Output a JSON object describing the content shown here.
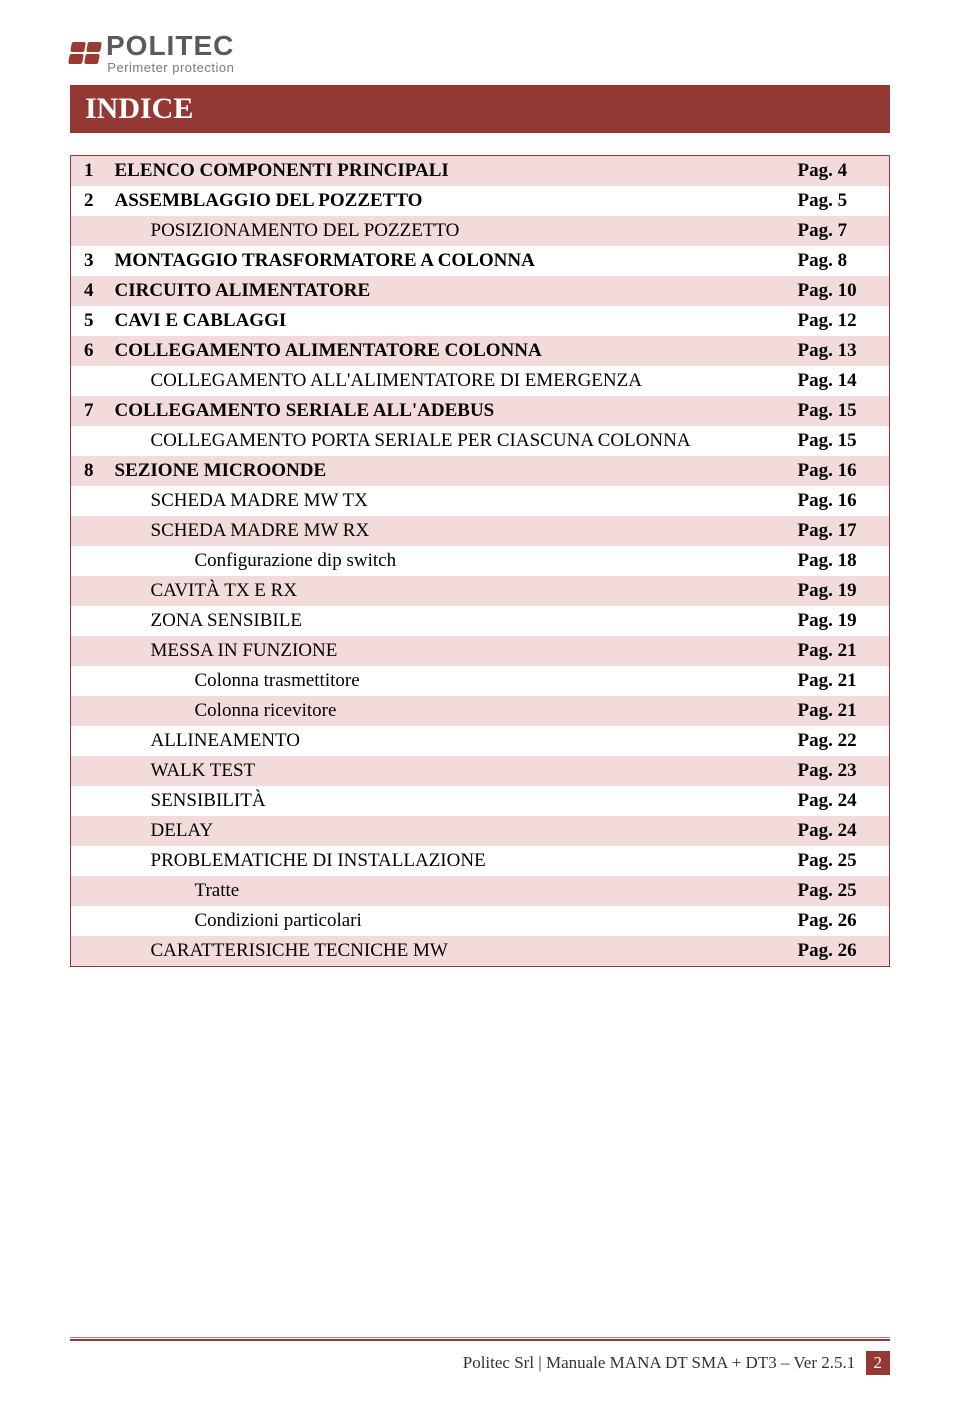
{
  "logo": {
    "brand": "POLITEC",
    "tagline": "Perimeter protection"
  },
  "title": "INDICE",
  "colors": {
    "brand": "#943833",
    "row_alt": "#f2dbda",
    "row_plain": "#ffffff",
    "text": "#000000"
  },
  "toc": [
    {
      "num": "1",
      "label": "ELENCO COMPONENTI PRINCIPALI",
      "page": "Pag. 4",
      "bold": true,
      "indent": 0,
      "alt": true
    },
    {
      "num": "2",
      "label": "ASSEMBLAGGIO DEL POZZETTO",
      "page": "Pag. 5",
      "bold": true,
      "indent": 0,
      "alt": false
    },
    {
      "num": "",
      "label": "POSIZIONAMENTO DEL POZZETTO",
      "page": "Pag. 7",
      "bold": false,
      "indent": 1,
      "alt": true
    },
    {
      "num": "3",
      "label": "MONTAGGIO TRASFORMATORE A COLONNA",
      "page": "Pag. 8",
      "bold": true,
      "indent": 0,
      "alt": false
    },
    {
      "num": "4",
      "label": "CIRCUITO ALIMENTATORE",
      "page": "Pag. 10",
      "bold": true,
      "indent": 0,
      "alt": true
    },
    {
      "num": "5",
      "label": "CAVI E CABLAGGI",
      "page": "Pag. 12",
      "bold": true,
      "indent": 0,
      "alt": false
    },
    {
      "num": "6",
      "label": "COLLEGAMENTO ALIMENTATORE COLONNA",
      "page": "Pag. 13",
      "bold": true,
      "indent": 0,
      "alt": true
    },
    {
      "num": "",
      "label": "COLLEGAMENTO ALL'ALIMENTATORE DI EMERGENZA",
      "page": "Pag. 14",
      "bold": false,
      "indent": 1,
      "alt": false
    },
    {
      "num": "7",
      "label": "COLLEGAMENTO SERIALE ALL'ADEBUS",
      "page": "Pag. 15",
      "bold": true,
      "indent": 0,
      "alt": true
    },
    {
      "num": "",
      "label": "COLLEGAMENTO PORTA SERIALE PER CIASCUNA COLONNA",
      "page": "Pag. 15",
      "bold": false,
      "indent": 1,
      "alt": false
    },
    {
      "num": "8",
      "label": "SEZIONE MICROONDE",
      "page": "Pag. 16",
      "bold": true,
      "indent": 0,
      "alt": true
    },
    {
      "num": "",
      "label": "SCHEDA MADRE MW TX",
      "page": "Pag. 16",
      "bold": false,
      "indent": 1,
      "alt": false
    },
    {
      "num": "",
      "label": "SCHEDA MADRE MW RX",
      "page": "Pag. 17",
      "bold": false,
      "indent": 1,
      "alt": true
    },
    {
      "num": "",
      "label": "Configurazione dip switch",
      "page": "Pag. 18",
      "bold": false,
      "indent": 2,
      "alt": false
    },
    {
      "num": "",
      "label": "CAVITÀ TX E RX",
      "page": "Pag. 19",
      "bold": false,
      "indent": 1,
      "alt": true
    },
    {
      "num": "",
      "label": "ZONA SENSIBILE",
      "page": "Pag. 19",
      "bold": false,
      "indent": 1,
      "alt": false
    },
    {
      "num": "",
      "label": "MESSA IN FUNZIONE",
      "page": "Pag. 21",
      "bold": false,
      "indent": 1,
      "alt": true
    },
    {
      "num": "",
      "label": "Colonna trasmettitore",
      "page": "Pag. 21",
      "bold": false,
      "indent": 2,
      "alt": false
    },
    {
      "num": "",
      "label": "Colonna ricevitore",
      "page": "Pag. 21",
      "bold": false,
      "indent": 2,
      "alt": true
    },
    {
      "num": "",
      "label": "ALLINEAMENTO",
      "page": "Pag. 22",
      "bold": false,
      "indent": 1,
      "alt": false
    },
    {
      "num": "",
      "label": "WALK TEST",
      "page": "Pag. 23",
      "bold": false,
      "indent": 1,
      "alt": true
    },
    {
      "num": "",
      "label": "SENSIBILITÀ",
      "page": "Pag. 24",
      "bold": false,
      "indent": 1,
      "alt": false
    },
    {
      "num": "",
      "label": "DELAY",
      "page": "Pag. 24",
      "bold": false,
      "indent": 1,
      "alt": true
    },
    {
      "num": "",
      "label": "PROBLEMATICHE DI INSTALLAZIONE",
      "page": "Pag. 25",
      "bold": false,
      "indent": 1,
      "alt": false
    },
    {
      "num": "",
      "label": "Tratte",
      "page": "Pag. 25",
      "bold": false,
      "indent": 2,
      "alt": true
    },
    {
      "num": "",
      "label": "Condizioni particolari",
      "page": "Pag. 26",
      "bold": false,
      "indent": 2,
      "alt": false
    },
    {
      "num": "",
      "label": "CARATTERISICHE TECNICHE MW",
      "page": "Pag. 26",
      "bold": false,
      "indent": 1,
      "alt": true
    }
  ],
  "footer": {
    "text": "Politec Srl | Manuale MANA DT SMA + DT3 – Ver 2.5.1",
    "page_num": "2"
  }
}
